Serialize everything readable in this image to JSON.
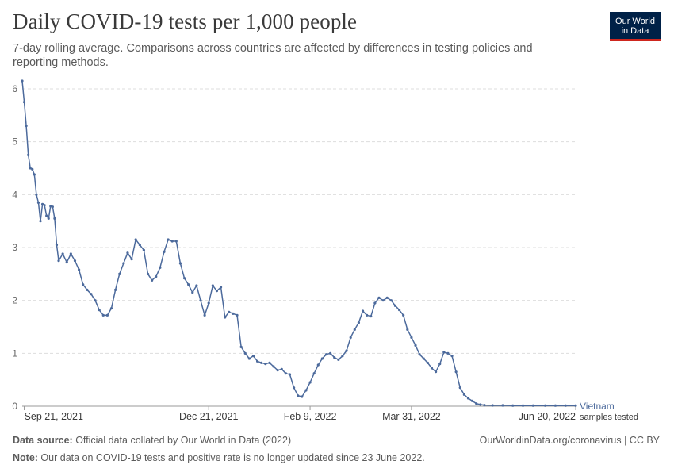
{
  "header": {
    "title": "Daily COVID-19 tests per 1,000 people",
    "subtitle": "7-day rolling average. Comparisons across countries are affected by differences in testing policies and reporting methods.",
    "logo_line1": "Our World",
    "logo_line2": "in Data"
  },
  "footer": {
    "source_label": "Data source:",
    "source_text": " Official data collated by Our World in Data (2022)",
    "note_label": "Note:",
    "note_text": " Our data on COVID-19 tests and positive rate is no longer updated since 23 June 2022.",
    "credit": "OurWorldinData.org/coronavirus | CC BY"
  },
  "colors": {
    "series": "#4c6a9c",
    "grid": "#dddddd",
    "logo_bg": "#002147",
    "logo_accent": "#ce261e"
  },
  "chart_data": {
    "type": "line",
    "title": "Daily COVID-19 tests per 1,000 people",
    "ylim": [
      0,
      6
    ],
    "y_ticks": [
      "0",
      "1",
      "2",
      "3",
      "4",
      "5",
      "6"
    ],
    "x_ticks": [
      "Sep 21, 2021",
      "Dec 21, 2021",
      "Feb 9, 2022",
      "Mar 31, 2022",
      "Jun 20, 2022"
    ],
    "x_tick_dates": [
      "2021-09-21",
      "2021-12-21",
      "2022-02-09",
      "2022-03-31",
      "2022-06-20"
    ],
    "grid": "horizontal dashed",
    "series": [
      {
        "name": "Vietnam",
        "sublabel": "samples tested",
        "x": [
          "2021-09-20",
          "2021-09-21",
          "2021-09-22",
          "2021-09-23",
          "2021-09-24",
          "2021-09-25",
          "2021-09-26",
          "2021-09-27",
          "2021-09-28",
          "2021-09-29",
          "2021-09-30",
          "2021-10-01",
          "2021-10-02",
          "2021-10-03",
          "2021-10-04",
          "2021-10-05",
          "2021-10-06",
          "2021-10-07",
          "2021-10-08",
          "2021-10-10",
          "2021-10-12",
          "2021-10-14",
          "2021-10-16",
          "2021-10-18",
          "2021-10-20",
          "2021-10-22",
          "2021-10-24",
          "2021-10-26",
          "2021-10-28",
          "2021-10-30",
          "2021-11-01",
          "2021-11-03",
          "2021-11-05",
          "2021-11-07",
          "2021-11-09",
          "2021-11-11",
          "2021-11-13",
          "2021-11-15",
          "2021-11-17",
          "2021-11-19",
          "2021-11-21",
          "2021-11-23",
          "2021-11-25",
          "2021-11-27",
          "2021-11-29",
          "2021-12-01",
          "2021-12-03",
          "2021-12-05",
          "2021-12-07",
          "2021-12-09",
          "2021-12-11",
          "2021-12-13",
          "2021-12-15",
          "2021-12-17",
          "2021-12-19",
          "2021-12-21",
          "2021-12-23",
          "2021-12-25",
          "2021-12-27",
          "2021-12-29",
          "2021-12-31",
          "2022-01-02",
          "2022-01-04",
          "2022-01-06",
          "2022-01-08",
          "2022-01-10",
          "2022-01-12",
          "2022-01-14",
          "2022-01-16",
          "2022-01-18",
          "2022-01-20",
          "2022-01-22",
          "2022-01-24",
          "2022-01-26",
          "2022-01-28",
          "2022-01-30",
          "2022-02-01",
          "2022-02-03",
          "2022-02-05",
          "2022-02-07",
          "2022-02-09",
          "2022-02-11",
          "2022-02-13",
          "2022-02-15",
          "2022-02-17",
          "2022-02-19",
          "2022-02-21",
          "2022-02-23",
          "2022-02-25",
          "2022-02-27",
          "2022-03-01",
          "2022-03-03",
          "2022-03-05",
          "2022-03-07",
          "2022-03-09",
          "2022-03-11",
          "2022-03-13",
          "2022-03-15",
          "2022-03-17",
          "2022-03-19",
          "2022-03-21",
          "2022-03-23",
          "2022-03-25",
          "2022-03-27",
          "2022-03-29",
          "2022-03-31",
          "2022-04-02",
          "2022-04-04",
          "2022-04-06",
          "2022-04-08",
          "2022-04-10",
          "2022-04-12",
          "2022-04-14",
          "2022-04-16",
          "2022-04-18",
          "2022-04-20",
          "2022-04-22",
          "2022-04-24",
          "2022-04-26",
          "2022-04-28",
          "2022-04-30",
          "2022-05-02",
          "2022-05-04",
          "2022-05-06",
          "2022-05-10",
          "2022-05-15",
          "2022-05-20",
          "2022-05-25",
          "2022-05-30",
          "2022-06-05",
          "2022-06-10",
          "2022-06-15",
          "2022-06-20"
        ],
        "y": [
          6.15,
          5.75,
          5.3,
          4.75,
          4.5,
          4.48,
          4.38,
          4.0,
          3.85,
          3.5,
          3.82,
          3.8,
          3.6,
          3.55,
          3.78,
          3.77,
          3.55,
          3.05,
          2.75,
          2.88,
          2.72,
          2.88,
          2.75,
          2.58,
          2.3,
          2.2,
          2.12,
          2.0,
          1.82,
          1.72,
          1.72,
          1.85,
          2.2,
          2.5,
          2.7,
          2.9,
          2.78,
          3.15,
          3.05,
          2.95,
          2.5,
          2.38,
          2.45,
          2.62,
          2.92,
          3.15,
          3.12,
          3.12,
          2.7,
          2.42,
          2.3,
          2.15,
          2.28,
          2.0,
          1.72,
          1.95,
          2.28,
          2.18,
          2.25,
          1.68,
          1.78,
          1.75,
          1.72,
          1.12,
          1.0,
          0.9,
          0.95,
          0.85,
          0.82,
          0.8,
          0.82,
          0.75,
          0.68,
          0.7,
          0.62,
          0.6,
          0.35,
          0.2,
          0.18,
          0.3,
          0.45,
          0.62,
          0.78,
          0.9,
          0.98,
          1.0,
          0.92,
          0.88,
          0.95,
          1.05,
          1.3,
          1.45,
          1.58,
          1.8,
          1.72,
          1.7,
          1.95,
          2.05,
          2.0,
          2.05,
          2.0,
          1.9,
          1.82,
          1.72,
          1.45,
          1.3,
          1.15,
          0.98,
          0.9,
          0.82,
          0.72,
          0.65,
          0.8,
          1.02,
          1.0,
          0.95,
          0.65,
          0.35,
          0.22,
          0.15,
          0.1,
          0.05,
          0.03,
          0.02,
          0.015,
          0.015,
          0.012,
          0.012,
          0.012,
          0.012,
          0.012,
          0.012,
          0.012
        ]
      }
    ]
  }
}
